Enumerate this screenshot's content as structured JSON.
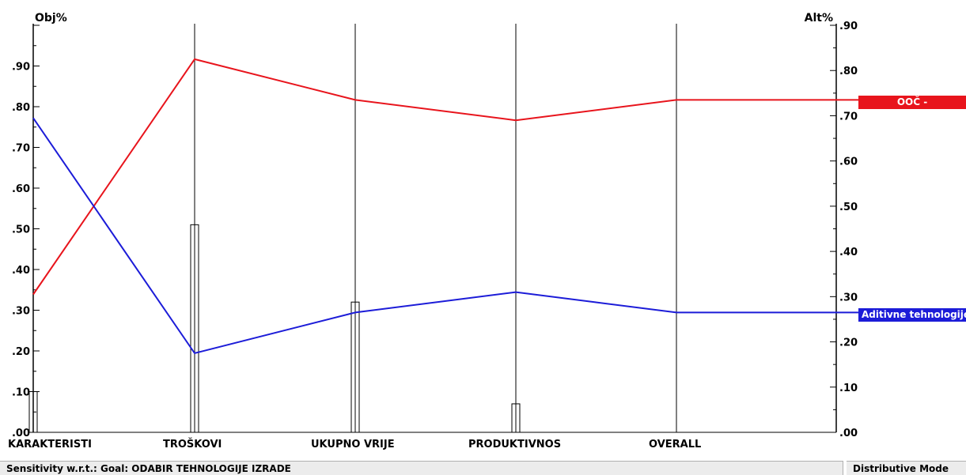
{
  "chart_data": {
    "type": "line",
    "left_axis_label": "Obj%",
    "right_axis_label": "Alt%",
    "categories": [
      "KARAKTERISTI",
      "TROŠKOVI",
      "UKUPNO VRIJE",
      "PRODUKTIVNOS",
      "OVERALL"
    ],
    "left_ylim": [
      0,
      1.0
    ],
    "left_ticks": [
      ".00",
      ".10",
      ".20",
      ".30",
      ".40",
      ".50",
      ".60",
      ".70",
      ".80",
      ".90"
    ],
    "right_ylim": [
      0,
      0.9
    ],
    "right_ticks": [
      ".00",
      ".10",
      ".20",
      ".30",
      ".40",
      ".50",
      ".60",
      ".70",
      ".80",
      ".90"
    ],
    "objective_weights": [
      0.1,
      0.51,
      0.32,
      0.07
    ],
    "series": [
      {
        "name": "OOČ -",
        "color": "#e8141c",
        "values": [
          0.305,
          0.825,
          0.735,
          0.69,
          0.735
        ]
      },
      {
        "name": "Aditivne tehnologije",
        "color": "#1c1cd8",
        "values": [
          0.695,
          0.175,
          0.265,
          0.31,
          0.265
        ]
      }
    ]
  },
  "status": {
    "left": "Sensitivity w.r.t.: Goal: ODABIR TEHNOLOGIJE IZRADE",
    "right": "Distributive Mode"
  }
}
